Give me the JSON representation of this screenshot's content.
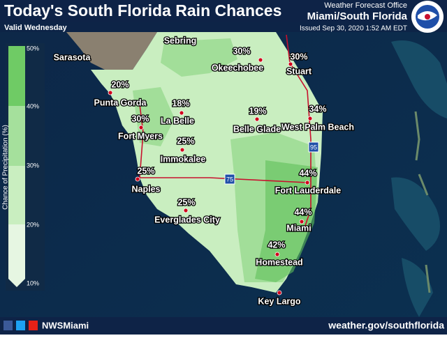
{
  "header": {
    "title": "Today's South Florida Rain Chances",
    "subtitle": "Valid Wednesday",
    "office": "Weather Forecast Office",
    "region": "Miami/South Florida",
    "issued": "Issued Sep 30, 2020 1:52 AM EDT"
  },
  "legend": {
    "title": "Chance of Precipitation (%)",
    "ticks": [
      "50%",
      "40%",
      "30%",
      "20%",
      "10%"
    ]
  },
  "cities": [
    {
      "name": "Sarasota"
    },
    {
      "name": "Sebring"
    },
    {
      "name": "Okeechobee",
      "chance": "30%"
    },
    {
      "name": "Stuart",
      "chance": "30%"
    },
    {
      "name": "Punta Gorda",
      "chance": "20%"
    },
    {
      "name": "La Belle",
      "chance": "18%"
    },
    {
      "name": "Belle Glade",
      "chance": "19%"
    },
    {
      "name": "West Palm Beach",
      "chance": "34%"
    },
    {
      "name": "Fort Myers",
      "chance": "30%"
    },
    {
      "name": "Immokalee",
      "chance": "25%"
    },
    {
      "name": "Naples",
      "chance": "25%"
    },
    {
      "name": "Fort Lauderdale",
      "chance": "44%"
    },
    {
      "name": "Everglades City",
      "chance": "25%"
    },
    {
      "name": "Miami",
      "chance": "44%"
    },
    {
      "name": "Homestead",
      "chance": "42%"
    },
    {
      "name": "Key Largo"
    }
  ],
  "highways": [
    "95",
    "75"
  ],
  "footer": {
    "handle": "NWSMiami",
    "url": "weather.gov/southflorida"
  }
}
